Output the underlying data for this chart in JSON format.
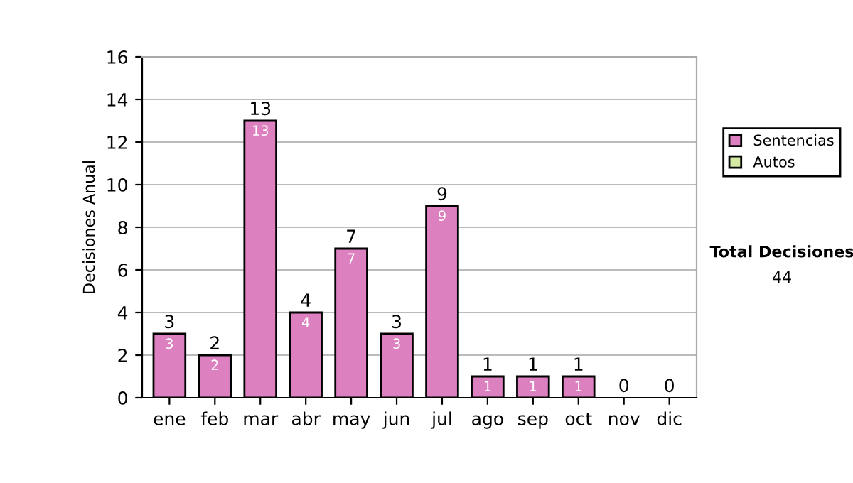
{
  "chart_data": {
    "type": "bar",
    "stacked": true,
    "ylabel": "Decisiones Anual",
    "categories": [
      "ene",
      "feb",
      "mar",
      "abr",
      "may",
      "jun",
      "jul",
      "ago",
      "sep",
      "oct",
      "nov",
      "dic"
    ],
    "series": [
      {
        "name": "Sentencias",
        "color": "#dc80c0",
        "values": [
          3,
          2,
          13,
          4,
          7,
          3,
          9,
          1,
          1,
          1,
          0,
          0
        ],
        "value_labels": [
          "3",
          "2",
          "13",
          "4",
          "7",
          "3",
          "9",
          "1",
          "1",
          "1",
          null,
          null
        ]
      },
      {
        "name": "Autos",
        "color": "#d4eaa4",
        "values": [
          0,
          0,
          0,
          0,
          0,
          0,
          0,
          0,
          0,
          0,
          0,
          0
        ]
      }
    ],
    "totals": [
      "3",
      "2",
      "13",
      "4",
      "7",
      "3",
      "9",
      "1",
      "1",
      "1",
      "0",
      "0"
    ],
    "ylim": [
      0,
      16
    ],
    "yticks": [
      0,
      2,
      4,
      6,
      8,
      10,
      12,
      14,
      16
    ],
    "grid": "y",
    "legend": "right",
    "annotations": [
      "Total Decisiones",
      "44"
    ]
  }
}
